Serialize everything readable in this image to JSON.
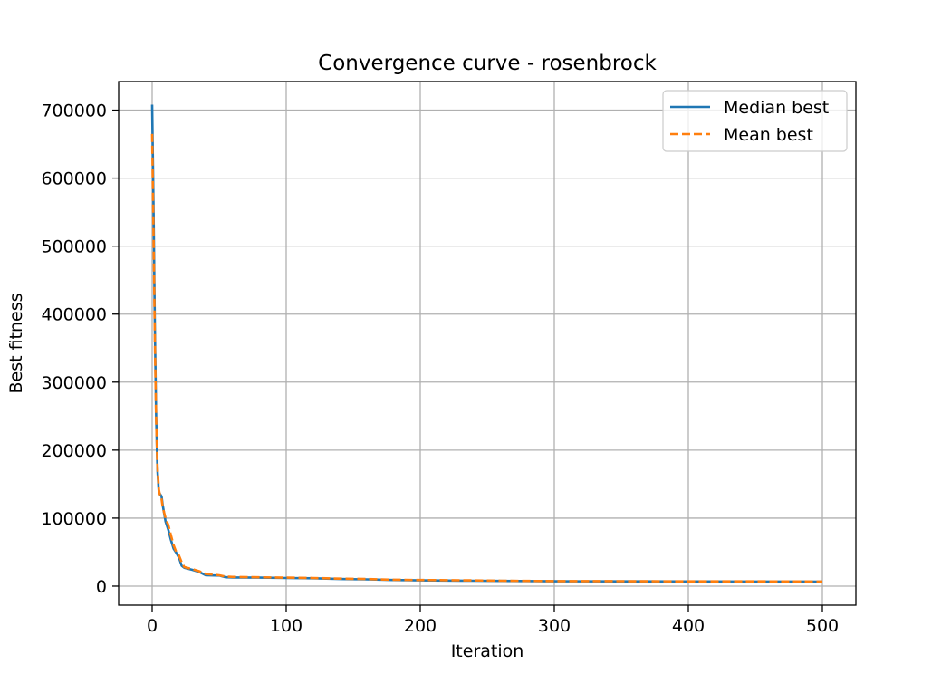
{
  "chart_data": {
    "type": "line",
    "title": "Convergence curve - rosenbrock",
    "xlabel": "Iteration",
    "ylabel": "Best fitness",
    "xlim": [
      -25,
      525
    ],
    "ylim": [
      -28000,
      742000
    ],
    "xticks": [
      0,
      100,
      200,
      300,
      400,
      500
    ],
    "xtick_labels": [
      "0",
      "100",
      "200",
      "300",
      "400",
      "500"
    ],
    "yticks": [
      0,
      100000,
      200000,
      300000,
      400000,
      500000,
      600000,
      700000
    ],
    "ytick_labels": [
      "0",
      "100000",
      "200000",
      "300000",
      "400000",
      "500000",
      "600000",
      "700000"
    ],
    "grid": true,
    "legend_position": "top-right",
    "series": [
      {
        "name": "Median best",
        "color": "#1f77b4",
        "style": "solid",
        "x": [
          0,
          1,
          2,
          3,
          4,
          5,
          6,
          7,
          8,
          10,
          12,
          14,
          16,
          18,
          20,
          22,
          24,
          26,
          28,
          30,
          35,
          40,
          50,
          55,
          60,
          80,
          100,
          120,
          140,
          160,
          180,
          200,
          240,
          260,
          300,
          350,
          400,
          450,
          500
        ],
        "y": [
          708000,
          560000,
          380000,
          250000,
          170000,
          138000,
          135000,
          132000,
          118000,
          95000,
          83000,
          68000,
          55000,
          49000,
          42000,
          30000,
          27000,
          26000,
          25000,
          24000,
          21000,
          16000,
          15500,
          13000,
          12800,
          12500,
          12000,
          11500,
          10500,
          10000,
          9000,
          8500,
          8000,
          7700,
          7200,
          7000,
          6900,
          6800,
          6600
        ]
      },
      {
        "name": "Mean best",
        "color": "#ff7f0e",
        "style": "dashed",
        "x": [
          0,
          1,
          2,
          3,
          4,
          5,
          6,
          7,
          8,
          10,
          12,
          14,
          16,
          18,
          20,
          22,
          24,
          26,
          28,
          30,
          35,
          40,
          50,
          55,
          60,
          80,
          100,
          120,
          140,
          160,
          180,
          200,
          240,
          260,
          300,
          350,
          400,
          450,
          500
        ],
        "y": [
          665000,
          520000,
          360000,
          245000,
          175000,
          142000,
          132000,
          128000,
          115000,
          100000,
          90000,
          75000,
          60000,
          50000,
          45000,
          35000,
          28000,
          27000,
          26000,
          25000,
          22000,
          18000,
          16000,
          14000,
          13500,
          13000,
          12500,
          12000,
          11000,
          10500,
          9500,
          9000,
          8500,
          8000,
          7500,
          7300,
          7100,
          7000,
          6800
        ]
      }
    ]
  }
}
